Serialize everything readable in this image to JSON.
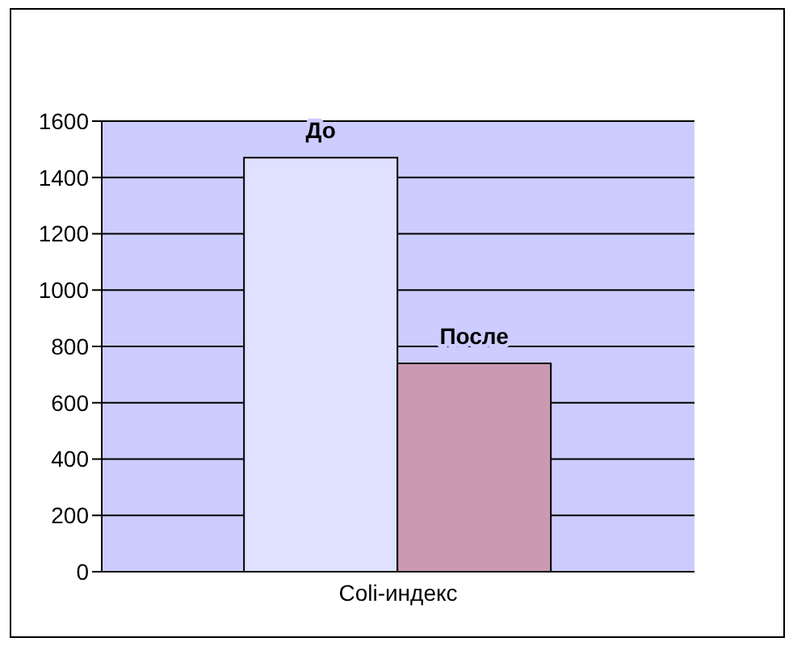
{
  "chart_data": {
    "type": "bar",
    "categories": [
      "Coli-индекс"
    ],
    "series": [
      {
        "name": "До",
        "color": "#e0e0ff",
        "values": [
          1470
        ]
      },
      {
        "name": "После",
        "color": "#cc99b2",
        "values": [
          740
        ]
      }
    ],
    "ylim": [
      0,
      1600
    ],
    "yticks": [
      0,
      200,
      400,
      600,
      800,
      1000,
      1200,
      1400,
      1600
    ],
    "grid": "y"
  }
}
